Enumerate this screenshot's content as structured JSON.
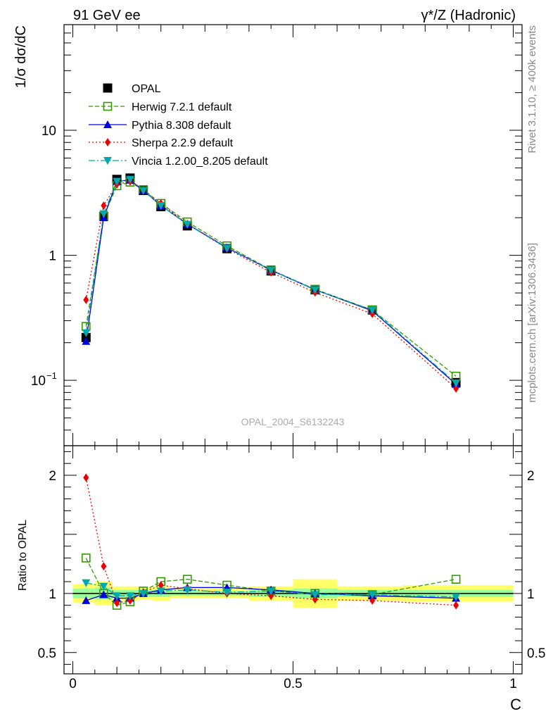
{
  "header": {
    "left": "91 GeV ee",
    "right": "γ*/Z (Hadronic)"
  },
  "side_text": {
    "rivet": "Rivet 3.1.10, ≥ 400k events",
    "mcplots": "mcplots.cern.ch [arXiv:1306.3436]"
  },
  "watermark": "OPAL_2004_S6132243",
  "colors": {
    "opal": "#000000",
    "herwig": "#339900",
    "pythia": "#0000dd",
    "sherpa": "#ee0000",
    "vincia": "#00aaaa",
    "band_inner": "#99ff99",
    "band_outer": "#ffff66"
  },
  "chart_data": [
    {
      "type": "line",
      "title": "",
      "xlabel": "C",
      "ylabel": "1/σ dσ/dC",
      "yscale": "log",
      "xlim": [
        -0.02,
        1.02
      ],
      "ylim": [
        0.03,
        70
      ],
      "y_tick_labels": [
        {
          "value": 0.1,
          "label": "10",
          "exp": "−1"
        },
        {
          "value": 1,
          "label": "1"
        },
        {
          "value": 10,
          "label": "10"
        }
      ],
      "x": [
        0.03,
        0.07,
        0.1,
        0.13,
        0.16,
        0.2,
        0.26,
        0.35,
        0.45,
        0.55,
        0.68,
        0.87
      ],
      "series": [
        {
          "name": "OPAL",
          "key": "opal",
          "marker": "square",
          "line": "none",
          "values": [
            0.22,
            2.05,
            4.05,
            4.15,
            3.3,
            2.45,
            1.72,
            1.13,
            0.75,
            0.53,
            0.365,
            0.096
          ]
        },
        {
          "name": "Herwig 7.2.1 default",
          "key": "herwig",
          "marker": "open-square",
          "line": "dashed",
          "values": [
            0.27,
            2.05,
            3.6,
            3.85,
            3.35,
            2.6,
            1.85,
            1.19,
            0.765,
            0.535,
            0.365,
            0.108
          ]
        },
        {
          "name": "Pythia 8.308 default",
          "key": "pythia",
          "marker": "triangle-up",
          "line": "solid",
          "values": [
            0.205,
            2.0,
            3.9,
            4.0,
            3.3,
            2.5,
            1.78,
            1.15,
            0.76,
            0.53,
            0.36,
            0.093
          ]
        },
        {
          "name": "Sherpa 2.2.9 default",
          "key": "sherpa",
          "marker": "diamond",
          "line": "dotted",
          "values": [
            0.44,
            2.5,
            3.7,
            3.9,
            3.3,
            2.6,
            1.78,
            1.13,
            0.73,
            0.505,
            0.34,
            0.086
          ]
        },
        {
          "name": "Vincia 1.2.00_8.205 default",
          "key": "vincia",
          "marker": "triangle-down",
          "line": "dashdot",
          "values": [
            0.24,
            2.15,
            3.9,
            4.05,
            3.3,
            2.5,
            1.77,
            1.14,
            0.76,
            0.53,
            0.365,
            0.095
          ]
        }
      ]
    },
    {
      "type": "line",
      "title": "",
      "xlabel": "C",
      "ylabel": "Ratio to OPAL",
      "yscale": "linear",
      "xlim": [
        -0.02,
        1.02
      ],
      "ylim": [
        0.32,
        2.25
      ],
      "x_tick_labels": [
        {
          "value": 0,
          "label": "0"
        },
        {
          "value": 0.5,
          "label": "0.5"
        },
        {
          "value": 1,
          "label": "1"
        }
      ],
      "y_tick_labels": [
        {
          "value": 0.5,
          "label": "0.5"
        },
        {
          "value": 1,
          "label": "1"
        },
        {
          "value": 2,
          "label": "2"
        }
      ],
      "x": [
        0.03,
        0.07,
        0.1,
        0.13,
        0.16,
        0.2,
        0.26,
        0.35,
        0.45,
        0.55,
        0.68,
        0.87
      ],
      "uncertainty_band": {
        "edges": [
          0,
          0.05,
          0.09,
          0.11,
          0.15,
          0.18,
          0.22,
          0.3,
          0.4,
          0.5,
          0.6,
          0.75,
          1.0
        ],
        "inner": [
          0.04,
          0.05,
          0.03,
          0.03,
          0.03,
          0.03,
          0.02,
          0.02,
          0.03,
          0.04,
          0.03,
          0.03
        ],
        "outer": [
          0.08,
          0.1,
          0.06,
          0.06,
          0.05,
          0.06,
          0.04,
          0.04,
          0.06,
          0.12,
          0.06,
          0.07
        ]
      },
      "series": [
        {
          "name": "Herwig 7.2.1 default",
          "key": "herwig",
          "marker": "open-square",
          "line": "dashed",
          "values": [
            1.3,
            1.0,
            0.9,
            0.93,
            1.02,
            1.1,
            1.12,
            1.07,
            1.02,
            1.0,
            0.99,
            1.12
          ]
        },
        {
          "name": "Pythia 8.308 default",
          "key": "pythia",
          "marker": "triangle-up",
          "line": "solid",
          "values": [
            0.94,
            0.99,
            0.96,
            0.96,
            1.0,
            1.03,
            1.05,
            1.05,
            1.03,
            1.0,
            0.98,
            0.96
          ]
        },
        {
          "name": "Sherpa 2.2.9 default",
          "key": "sherpa",
          "marker": "diamond",
          "line": "dotted",
          "values": [
            1.98,
            1.23,
            0.92,
            0.94,
            1.01,
            1.07,
            1.04,
            1.0,
            0.98,
            0.95,
            0.94,
            0.9
          ]
        },
        {
          "name": "Vincia 1.2.00_8.205 default",
          "key": "vincia",
          "marker": "triangle-down",
          "line": "dashdot",
          "values": [
            1.09,
            1.06,
            0.98,
            0.98,
            1.0,
            1.02,
            1.03,
            1.01,
            1.02,
            0.99,
            0.99,
            0.97
          ]
        }
      ]
    }
  ]
}
